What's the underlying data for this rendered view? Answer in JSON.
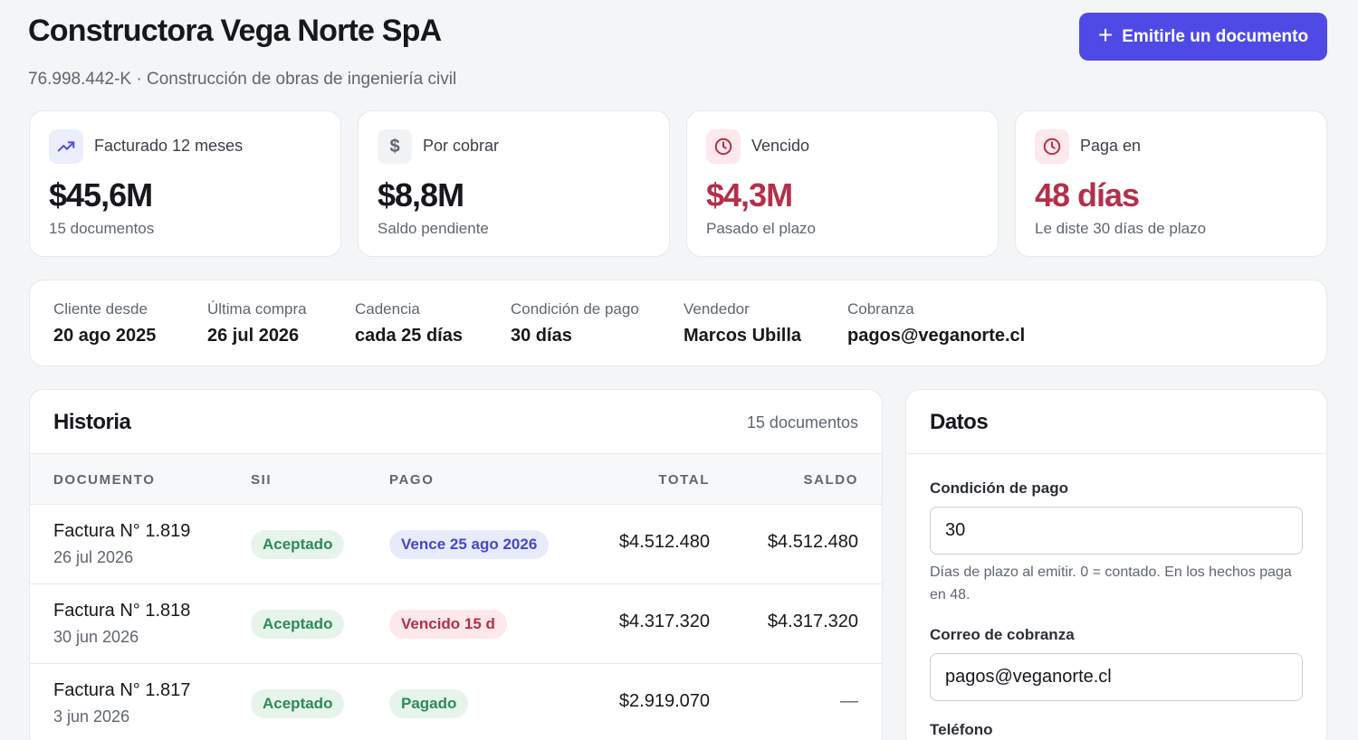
{
  "header": {
    "title": "Constructora Vega Norte SpA",
    "subtitle": "76.998.442-K · Construcción de obras de ingeniería civil",
    "emit_button": "Emitirle un documento"
  },
  "cards": [
    {
      "label": "Facturado 12 meses",
      "value": "$45,6M",
      "sub": "15 documentos",
      "icon": "trending-up-icon"
    },
    {
      "label": "Por cobrar",
      "value": "$8,8M",
      "sub": "Saldo pendiente",
      "icon": "dollar-icon"
    },
    {
      "label": "Vencido",
      "value": "$4,3M",
      "sub": "Pasado el plazo",
      "icon": "clock-icon"
    },
    {
      "label": "Paga en",
      "value": "48 días",
      "sub": "Le diste 30 días de plazo",
      "icon": "clock-icon"
    }
  ],
  "info": [
    {
      "key": "Cliente desde",
      "value": "20 ago 2025"
    },
    {
      "key": "Última compra",
      "value": "26 jul 2026"
    },
    {
      "key": "Cadencia",
      "value": "cada 25 días"
    },
    {
      "key": "Condición de pago",
      "value": "30 días"
    },
    {
      "key": "Vendedor",
      "value": "Marcos Ubilla"
    },
    {
      "key": "Cobranza",
      "value": "pagos@veganorte.cl"
    }
  ],
  "historia": {
    "title": "Historia",
    "count": "15 documentos",
    "columns": [
      "DOCUMENTO",
      "SII",
      "PAGO",
      "TOTAL",
      "SALDO"
    ],
    "rows": [
      {
        "doc": "Factura N° 1.819",
        "date": "26 jul 2026",
        "sii": "Aceptado",
        "pago": "Vence 25 ago 2026",
        "total": "$4.512.480",
        "saldo": "$4.512.480"
      },
      {
        "doc": "Factura N° 1.818",
        "date": "30 jun 2026",
        "sii": "Aceptado",
        "pago": "Vencido 15 d",
        "total": "$4.317.320",
        "saldo": "$4.317.320"
      },
      {
        "doc": "Factura N° 1.817",
        "date": "3 jun 2026",
        "sii": "Aceptado",
        "pago": "Pagado",
        "total": "$2.919.070",
        "saldo": "—"
      }
    ]
  },
  "datos": {
    "title": "Datos",
    "condicion_label": "Condición de pago",
    "condicion_value": "30",
    "condicion_help": "Días de plazo al emitir. 0 = contado. En los hechos paga en 48.",
    "correo_label": "Correo de cobranza",
    "correo_value": "pagos@veganorte.cl",
    "telefono_label": "Teléfono"
  },
  "colors": {
    "accent": "#4f4ae6",
    "danger": "#b4304a",
    "success": "#2f8a56"
  }
}
